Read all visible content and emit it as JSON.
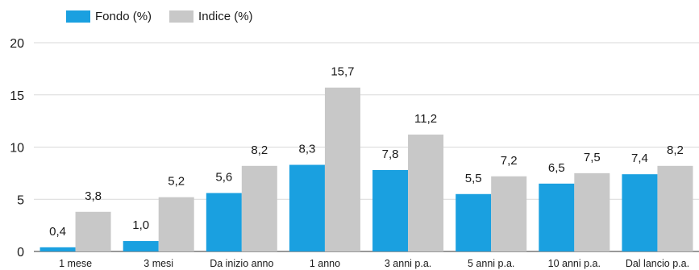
{
  "chart_data": {
    "type": "bar",
    "title": "",
    "xlabel": "",
    "ylabel": "",
    "categories": [
      "1 mese",
      "3 mesi",
      "Da inizio anno",
      "1 anno",
      "3 anni p.a.",
      "5 anni p.a.",
      "10 anni p.a.",
      "Dal lancio p.a."
    ],
    "series": [
      {
        "name": "Fondo (%)",
        "color": "#1aa0e0",
        "values": [
          0.4,
          1.0,
          5.6,
          8.3,
          7.8,
          5.5,
          6.5,
          7.4
        ],
        "labels": [
          "0,4",
          "1,0",
          "5,6",
          "8,3",
          "7,8",
          "5,5",
          "6,5",
          "7,4"
        ]
      },
      {
        "name": "Indice (%)",
        "color": "#c8c8c8",
        "values": [
          3.8,
          5.2,
          8.2,
          15.7,
          11.2,
          7.2,
          7.5,
          8.2
        ],
        "labels": [
          "3,8",
          "5,2",
          "8,2",
          "15,7",
          "11,2",
          "7,2",
          "7,5",
          "8,2"
        ]
      }
    ],
    "ylim": [
      0,
      20
    ],
    "yticks": [
      0,
      5,
      10,
      15,
      20
    ],
    "ytick_labels": [
      "0",
      "5",
      "10",
      "15",
      "20"
    ],
    "grid": true,
    "legend_position": "top-left"
  }
}
